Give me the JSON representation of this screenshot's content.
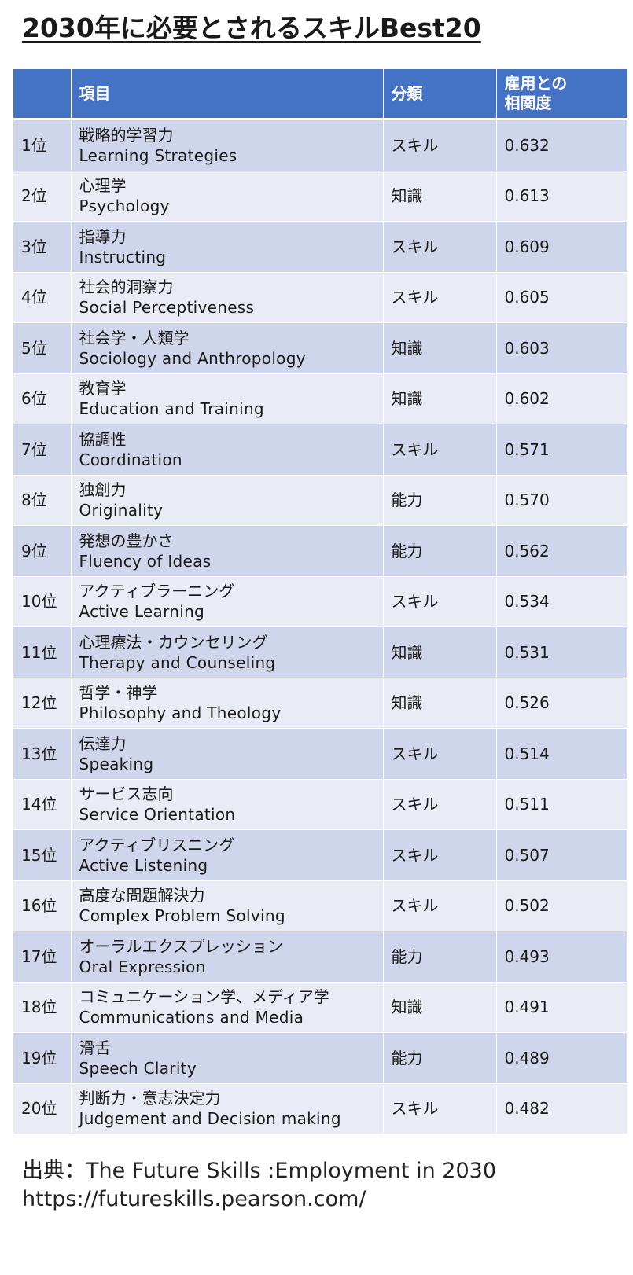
{
  "title": "2030年に必要とされるスキルBest20",
  "table": {
    "headers": {
      "rank": "",
      "item": "項目",
      "category": "分類",
      "correlation_line1": "雇用との",
      "correlation_line2": "相関度"
    },
    "rows": [
      {
        "rank": "1位",
        "ja": "戦略的学習力",
        "en": "Learning Strategies",
        "category": "スキル",
        "correlation": "0.632"
      },
      {
        "rank": "2位",
        "ja": "心理学",
        "en": "Psychology",
        "category": "知識",
        "correlation": "0.613"
      },
      {
        "rank": "3位",
        "ja": "指導力",
        "en": "Instructing",
        "category": "スキル",
        "correlation": "0.609"
      },
      {
        "rank": "4位",
        "ja": "社会的洞察力",
        "en": "Social Perceptiveness",
        "category": "スキル",
        "correlation": "0.605"
      },
      {
        "rank": "5位",
        "ja": "社会学・人類学",
        "en": "Sociology and Anthropology",
        "category": "知識",
        "correlation": "0.603"
      },
      {
        "rank": "6位",
        "ja": "教育学",
        "en": "Education and Training",
        "category": "知識",
        "correlation": "0.602"
      },
      {
        "rank": "7位",
        "ja": "協調性",
        "en": "Coordination",
        "category": "スキル",
        "correlation": "0.571"
      },
      {
        "rank": "8位",
        "ja": "独創力",
        "en": "Originality",
        "category": "能力",
        "correlation": "0.570"
      },
      {
        "rank": "9位",
        "ja": "発想の豊かさ",
        "en": "Fluency of Ideas",
        "category": "能力",
        "correlation": "0.562"
      },
      {
        "rank": "10位",
        "ja": "アクティブラーニング",
        "en": "Active Learning",
        "category": "スキル",
        "correlation": "0.534"
      },
      {
        "rank": "11位",
        "ja": "心理療法・カウンセリング",
        "en": "Therapy and Counseling",
        "category": "知識",
        "correlation": "0.531"
      },
      {
        "rank": "12位",
        "ja": "哲学・神学",
        "en": "Philosophy and Theology",
        "category": "知識",
        "correlation": "0.526"
      },
      {
        "rank": "13位",
        "ja": "伝達力",
        "en": "Speaking",
        "category": "スキル",
        "correlation": "0.514"
      },
      {
        "rank": "14位",
        "ja": "サービス志向",
        "en": "Service Orientation",
        "category": "スキル",
        "correlation": "0.511"
      },
      {
        "rank": "15位",
        "ja": "アクティブリスニング",
        "en": "Active Listening",
        "category": "スキル",
        "correlation": "0.507"
      },
      {
        "rank": "16位",
        "ja": "高度な問題解決力",
        "en": "Complex Problem Solving",
        "category": "スキル",
        "correlation": "0.502"
      },
      {
        "rank": "17位",
        "ja": "オーラルエクスプレッション",
        "en": "Oral Expression",
        "category": "能力",
        "correlation": "0.493"
      },
      {
        "rank": "18位",
        "ja": "コミュニケーション学、メディア学",
        "en": "Communications and Media",
        "category": "知識",
        "correlation": "0.491"
      },
      {
        "rank": "19位",
        "ja": "滑舌",
        "en": "Speech Clarity",
        "category": "能力",
        "correlation": "0.489"
      },
      {
        "rank": "20位",
        "ja": "判断力・意志決定力",
        "en": "Judgement and Decision making",
        "category": "スキル",
        "correlation": "0.482"
      }
    ]
  },
  "source": {
    "line1": "出典：The Future Skills :Employment in 2030",
    "line2": "https://futureskills.pearson.com/"
  },
  "colors": {
    "header_bg": "#4472c4",
    "row_odd_bg": "#cfd5ea",
    "row_even_bg": "#e9ebf5"
  }
}
